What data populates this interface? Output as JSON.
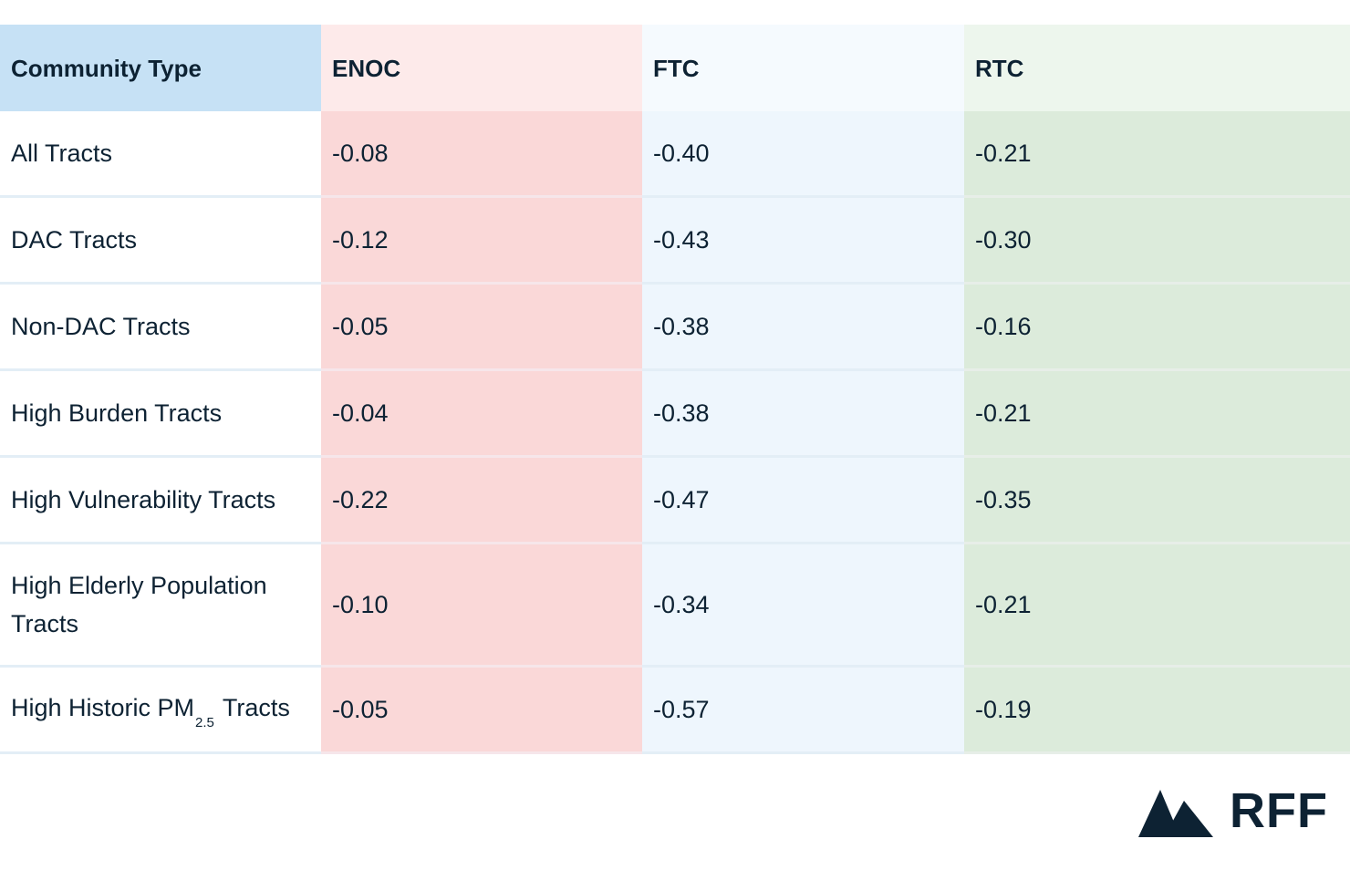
{
  "table": {
    "headers": [
      "Community Type",
      "ENOC",
      "FTC",
      "RTC"
    ],
    "rows": [
      {
        "community": "All Tracts",
        "enoc": "-0.08",
        "ftc": "-0.40",
        "rtc": "-0.21"
      },
      {
        "community": "DAC Tracts",
        "enoc": "-0.12",
        "ftc": "-0.43",
        "rtc": "-0.30"
      },
      {
        "community": "Non-DAC Tracts",
        "enoc": "-0.05",
        "ftc": "-0.38",
        "rtc": "-0.16"
      },
      {
        "community": "High Burden Tracts",
        "enoc": "-0.04",
        "ftc": "-0.38",
        "rtc": "-0.21"
      },
      {
        "community": "High Vulnerability Tracts",
        "enoc": "-0.22",
        "ftc": "-0.47",
        "rtc": "-0.35"
      },
      {
        "community": "High Elderly Population Tracts",
        "enoc": "-0.10",
        "ftc": "-0.34",
        "rtc": "-0.21"
      },
      {
        "community_prefix": "High Historic PM",
        "community_sub": "2.5",
        "community_suffix": "Tracts",
        "enoc": "-0.05",
        "ftc": "-0.57",
        "rtc": "-0.19"
      }
    ]
  },
  "colors": {
    "header_type": "#c6e1f5",
    "header_enoc": "#fdeaea",
    "header_ftc": "#f5fafe",
    "header_rtc": "#edf6ed",
    "cell_enoc": "#fad8d8",
    "cell_ftc": "#eef6fd",
    "cell_rtc": "#dcebdb",
    "text": "#0d2233"
  },
  "logo": {
    "text": "RFF",
    "icon": "mountain-icon"
  }
}
